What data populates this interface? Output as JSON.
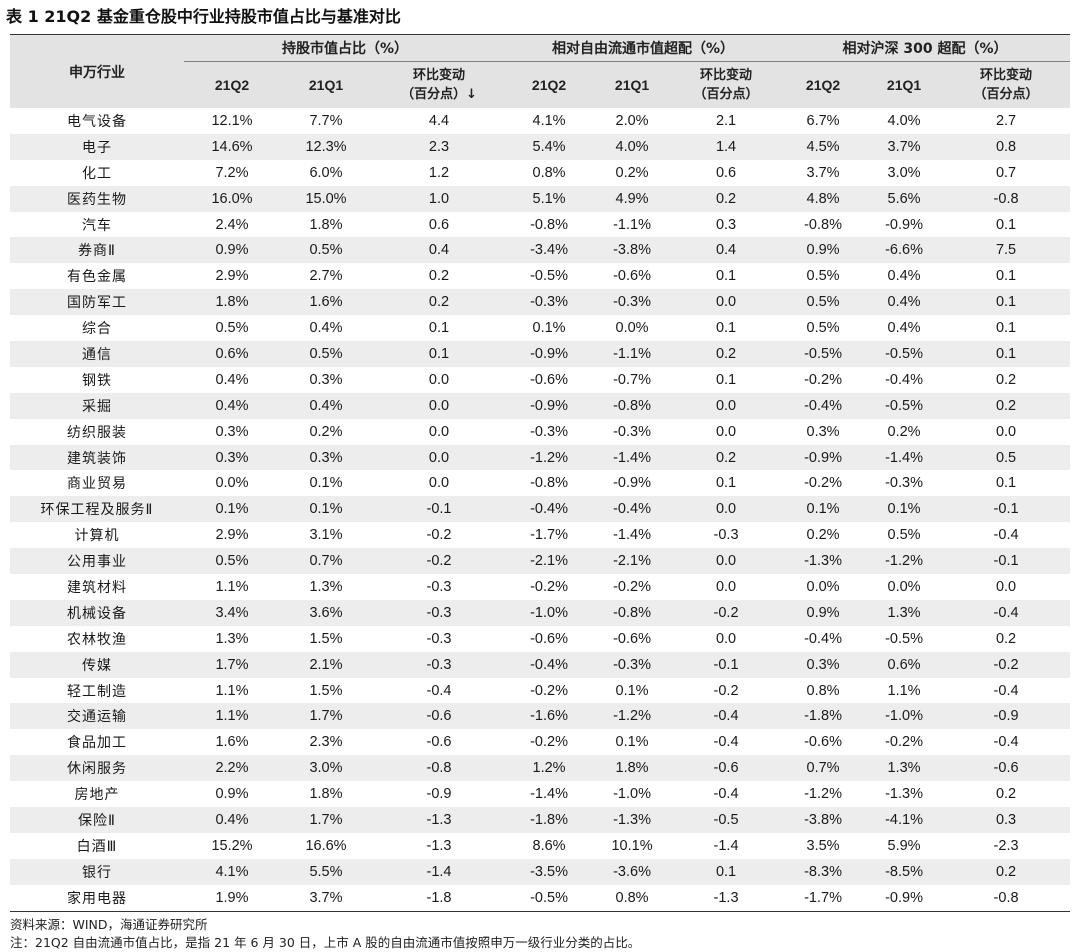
{
  "title": "表 1  21Q2 基金重仓股中行业持股市值占比与基准对比",
  "header": {
    "industry": "申万行业",
    "groups": [
      "持股市值占比（%）",
      "相对自由流通市值超配（%）",
      "相对沪深 300 超配（%）"
    ],
    "group_sub": [
      {
        "q2": "21Q2",
        "q1": "21Q1",
        "chg1": "环比变动",
        "chg2": "（百分点）↓"
      },
      {
        "q2": "21Q2",
        "q1": "21Q1",
        "chg1": "环比变动",
        "chg2": "（百分点）"
      },
      {
        "q2": "21Q2",
        "q1": "21Q1",
        "chg1": "环比变动",
        "chg2": "（百分点）"
      }
    ]
  },
  "rows": [
    [
      "电气设备",
      "12.1%",
      "7.7%",
      "4.4",
      "4.1%",
      "2.0%",
      "2.1",
      "6.7%",
      "4.0%",
      "2.7"
    ],
    [
      "电子",
      "14.6%",
      "12.3%",
      "2.3",
      "5.4%",
      "4.0%",
      "1.4",
      "4.5%",
      "3.7%",
      "0.8"
    ],
    [
      "化工",
      "7.2%",
      "6.0%",
      "1.2",
      "0.8%",
      "0.2%",
      "0.6",
      "3.7%",
      "3.0%",
      "0.7"
    ],
    [
      "医药生物",
      "16.0%",
      "15.0%",
      "1.0",
      "5.1%",
      "4.9%",
      "0.2",
      "4.8%",
      "5.6%",
      "-0.8"
    ],
    [
      "汽车",
      "2.4%",
      "1.8%",
      "0.6",
      "-0.8%",
      "-1.1%",
      "0.3",
      "-0.8%",
      "-0.9%",
      "0.1"
    ],
    [
      "券商Ⅱ",
      "0.9%",
      "0.5%",
      "0.4",
      "-3.4%",
      "-3.8%",
      "0.4",
      "0.9%",
      "-6.6%",
      "7.5"
    ],
    [
      "有色金属",
      "2.9%",
      "2.7%",
      "0.2",
      "-0.5%",
      "-0.6%",
      "0.1",
      "0.5%",
      "0.4%",
      "0.1"
    ],
    [
      "国防军工",
      "1.8%",
      "1.6%",
      "0.2",
      "-0.3%",
      "-0.3%",
      "0.0",
      "0.5%",
      "0.4%",
      "0.1"
    ],
    [
      "综合",
      "0.5%",
      "0.4%",
      "0.1",
      "0.1%",
      "0.0%",
      "0.1",
      "0.5%",
      "0.4%",
      "0.1"
    ],
    [
      "通信",
      "0.6%",
      "0.5%",
      "0.1",
      "-0.9%",
      "-1.1%",
      "0.2",
      "-0.5%",
      "-0.5%",
      "0.1"
    ],
    [
      "钢铁",
      "0.4%",
      "0.3%",
      "0.0",
      "-0.6%",
      "-0.7%",
      "0.1",
      "-0.2%",
      "-0.4%",
      "0.2"
    ],
    [
      "采掘",
      "0.4%",
      "0.4%",
      "0.0",
      "-0.9%",
      "-0.8%",
      "0.0",
      "-0.4%",
      "-0.5%",
      "0.2"
    ],
    [
      "纺织服装",
      "0.3%",
      "0.2%",
      "0.0",
      "-0.3%",
      "-0.3%",
      "0.0",
      "0.3%",
      "0.2%",
      "0.0"
    ],
    [
      "建筑装饰",
      "0.3%",
      "0.3%",
      "0.0",
      "-1.2%",
      "-1.4%",
      "0.2",
      "-0.9%",
      "-1.4%",
      "0.5"
    ],
    [
      "商业贸易",
      "0.0%",
      "0.1%",
      "0.0",
      "-0.8%",
      "-0.9%",
      "0.1",
      "-0.2%",
      "-0.3%",
      "0.1"
    ],
    [
      "环保工程及服务Ⅱ",
      "0.1%",
      "0.1%",
      "-0.1",
      "-0.4%",
      "-0.4%",
      "0.0",
      "0.1%",
      "0.1%",
      "-0.1"
    ],
    [
      "计算机",
      "2.9%",
      "3.1%",
      "-0.2",
      "-1.7%",
      "-1.4%",
      "-0.3",
      "0.2%",
      "0.5%",
      "-0.4"
    ],
    [
      "公用事业",
      "0.5%",
      "0.7%",
      "-0.2",
      "-2.1%",
      "-2.1%",
      "0.0",
      "-1.3%",
      "-1.2%",
      "-0.1"
    ],
    [
      "建筑材料",
      "1.1%",
      "1.3%",
      "-0.3",
      "-0.2%",
      "-0.2%",
      "0.0",
      "0.0%",
      "0.0%",
      "0.0"
    ],
    [
      "机械设备",
      "3.4%",
      "3.6%",
      "-0.3",
      "-1.0%",
      "-0.8%",
      "-0.2",
      "0.9%",
      "1.3%",
      "-0.4"
    ],
    [
      "农林牧渔",
      "1.3%",
      "1.5%",
      "-0.3",
      "-0.6%",
      "-0.6%",
      "0.0",
      "-0.4%",
      "-0.5%",
      "0.2"
    ],
    [
      "传媒",
      "1.7%",
      "2.1%",
      "-0.3",
      "-0.4%",
      "-0.3%",
      "-0.1",
      "0.3%",
      "0.6%",
      "-0.2"
    ],
    [
      "轻工制造",
      "1.1%",
      "1.5%",
      "-0.4",
      "-0.2%",
      "0.1%",
      "-0.2",
      "0.8%",
      "1.1%",
      "-0.4"
    ],
    [
      "交通运输",
      "1.1%",
      "1.7%",
      "-0.6",
      "-1.6%",
      "-1.2%",
      "-0.4",
      "-1.8%",
      "-1.0%",
      "-0.9"
    ],
    [
      "食品加工",
      "1.6%",
      "2.3%",
      "-0.6",
      "-0.2%",
      "0.1%",
      "-0.4",
      "-0.6%",
      "-0.2%",
      "-0.4"
    ],
    [
      "休闲服务",
      "2.2%",
      "3.0%",
      "-0.8",
      "1.2%",
      "1.8%",
      "-0.6",
      "0.7%",
      "1.3%",
      "-0.6"
    ],
    [
      "房地产",
      "0.9%",
      "1.8%",
      "-0.9",
      "-1.4%",
      "-1.0%",
      "-0.4",
      "-1.2%",
      "-1.3%",
      "0.2"
    ],
    [
      "保险Ⅱ",
      "0.4%",
      "1.7%",
      "-1.3",
      "-1.8%",
      "-1.3%",
      "-0.5",
      "-3.8%",
      "-4.1%",
      "0.3"
    ],
    [
      "白酒Ⅲ",
      "15.2%",
      "16.6%",
      "-1.3",
      "8.6%",
      "10.1%",
      "-1.4",
      "3.5%",
      "5.9%",
      "-2.3"
    ],
    [
      "银行",
      "4.1%",
      "5.5%",
      "-1.4",
      "-3.5%",
      "-3.6%",
      "0.1",
      "-8.3%",
      "-8.5%",
      "0.2"
    ],
    [
      "家用电器",
      "1.9%",
      "3.7%",
      "-1.8",
      "-0.5%",
      "0.8%",
      "-1.3",
      "-1.7%",
      "-0.9%",
      "-0.8"
    ]
  ],
  "footer": {
    "source": "资料来源：WIND，海通证券研究所",
    "note": "注：21Q2 自由流通市值占比，是指 21 年 6 月 30 日，上市 A 股的自由流通市值按照申万一级行业分类的占比。"
  }
}
